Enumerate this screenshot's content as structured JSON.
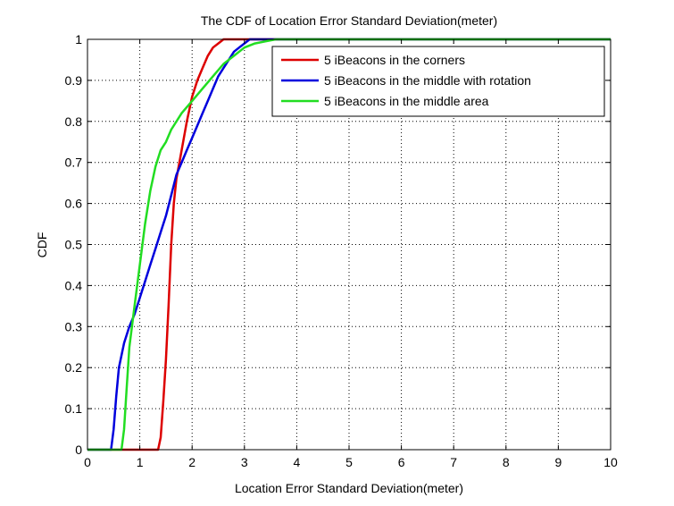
{
  "chart_data": {
    "type": "line",
    "title": "The CDF of Location Error Standard Deviation(meter)",
    "xlabel": "Location Error Standard Deviation(meter)",
    "ylabel": "CDF",
    "xlim": [
      0,
      10
    ],
    "ylim": [
      0,
      1
    ],
    "xticks": [
      "0",
      "1",
      "2",
      "3",
      "4",
      "5",
      "6",
      "7",
      "8",
      "9",
      "10"
    ],
    "yticks": [
      "0",
      "0.1",
      "0.2",
      "0.3",
      "0.4",
      "0.5",
      "0.6",
      "0.7",
      "0.8",
      "0.9",
      "1"
    ],
    "grid": true,
    "legend_position": "top-right",
    "series": [
      {
        "name": "5 iBeacons in the corners",
        "color": "#dd0000",
        "x": [
          0,
          1.35,
          1.4,
          1.45,
          1.5,
          1.55,
          1.6,
          1.65,
          1.7,
          1.8,
          1.9,
          2.0,
          2.1,
          2.2,
          2.3,
          2.4,
          2.5,
          2.6,
          2.7,
          10
        ],
        "y": [
          0,
          0,
          0.03,
          0.12,
          0.22,
          0.35,
          0.5,
          0.6,
          0.66,
          0.73,
          0.8,
          0.86,
          0.9,
          0.93,
          0.96,
          0.98,
          0.99,
          1.0,
          1.0,
          1.0
        ]
      },
      {
        "name": "5 iBeacons in the middle with rotation",
        "color": "#0000dd",
        "x": [
          0,
          0.45,
          0.5,
          0.55,
          0.6,
          0.7,
          0.8,
          0.9,
          1.0,
          1.1,
          1.2,
          1.3,
          1.4,
          1.5,
          1.6,
          1.7,
          1.8,
          1.9,
          2.0,
          2.1,
          2.2,
          2.3,
          2.4,
          2.5,
          2.6,
          2.7,
          2.8,
          2.9,
          3.0,
          3.1,
          3.2,
          10
        ],
        "y": [
          0,
          0,
          0.05,
          0.13,
          0.2,
          0.26,
          0.3,
          0.33,
          0.37,
          0.41,
          0.45,
          0.49,
          0.53,
          0.57,
          0.62,
          0.67,
          0.7,
          0.73,
          0.76,
          0.79,
          0.82,
          0.85,
          0.88,
          0.91,
          0.93,
          0.95,
          0.97,
          0.98,
          0.99,
          1.0,
          1.0,
          1.0
        ]
      },
      {
        "name": "5 iBeacons in the middle area",
        "color": "#22dd22",
        "x": [
          0,
          0.65,
          0.7,
          0.75,
          0.8,
          0.85,
          0.9,
          1.0,
          1.1,
          1.2,
          1.3,
          1.4,
          1.5,
          1.6,
          1.8,
          2.0,
          2.2,
          2.4,
          2.6,
          2.8,
          3.0,
          3.2,
          3.4,
          3.6,
          3.7,
          10
        ],
        "y": [
          0,
          0,
          0.05,
          0.15,
          0.25,
          0.3,
          0.35,
          0.45,
          0.55,
          0.63,
          0.69,
          0.73,
          0.75,
          0.78,
          0.82,
          0.85,
          0.88,
          0.91,
          0.94,
          0.96,
          0.98,
          0.99,
          0.995,
          1.0,
          1.0,
          1.0
        ]
      }
    ]
  }
}
